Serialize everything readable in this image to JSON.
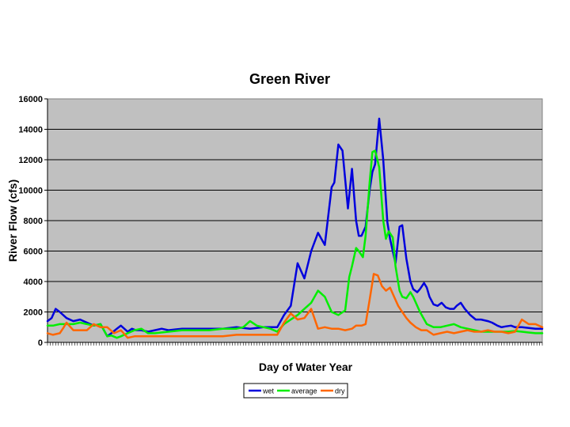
{
  "chart_data": {
    "type": "line",
    "title": "Green River",
    "xlabel": "Day of Water Year",
    "ylabel": "River Flow (cfs)",
    "xlim": [
      1,
      365
    ],
    "ylim": [
      0,
      16000
    ],
    "yticks": [
      0,
      2000,
      4000,
      6000,
      8000,
      10000,
      12000,
      14000,
      16000
    ],
    "grid": "horizontal",
    "legend": "bottom-center",
    "plot_background": "#c0c0c0",
    "series": [
      {
        "name": "wet",
        "color": "#0000dd",
        "x": [
          1,
          4,
          7,
          10,
          15,
          20,
          25,
          30,
          35,
          40,
          45,
          48,
          52,
          55,
          60,
          63,
          66,
          70,
          75,
          80,
          85,
          90,
          95,
          100,
          110,
          120,
          130,
          140,
          150,
          160,
          170,
          175,
          180,
          185,
          190,
          195,
          200,
          205,
          210,
          212,
          215,
          218,
          222,
          225,
          228,
          230,
          232,
          235,
          238,
          240,
          242,
          245,
          248,
          251,
          253,
          255,
          257,
          260,
          262,
          265,
          268,
          270,
          273,
          275,
          278,
          280,
          282,
          285,
          288,
          291,
          294,
          297,
          300,
          302,
          305,
          308,
          312,
          316,
          320,
          325,
          328,
          330,
          332,
          335,
          338,
          342,
          345,
          350,
          355,
          360,
          365
        ],
        "y": [
          1400,
          1600,
          2200,
          2000,
          1600,
          1400,
          1500,
          1300,
          1100,
          1200,
          400,
          600,
          900,
          1100,
          700,
          900,
          800,
          800,
          700,
          800,
          900,
          800,
          850,
          900,
          900,
          900,
          900,
          1000,
          900,
          1000,
          1000,
          1800,
          2400,
          5200,
          4200,
          6000,
          7200,
          6400,
          10200,
          10500,
          13000,
          12600,
          8800,
          11400,
          8000,
          7000,
          7000,
          7600,
          10000,
          11200,
          11700,
          14700,
          12000,
          7900,
          6800,
          6000,
          5200,
          7600,
          7700,
          5500,
          4000,
          3500,
          3300,
          3500,
          3900,
          3600,
          3000,
          2500,
          2400,
          2600,
          2300,
          2200,
          2200,
          2400,
          2600,
          2200,
          1800,
          1500,
          1500,
          1400,
          1300,
          1200,
          1100,
          1000,
          1050,
          1100,
          1000,
          1000,
          950,
          900,
          900
        ]
      },
      {
        "name": "average",
        "color": "#00ee00",
        "x": [
          1,
          5,
          10,
          15,
          20,
          25,
          30,
          35,
          40,
          45,
          48,
          52,
          55,
          60,
          65,
          70,
          75,
          80,
          90,
          100,
          110,
          120,
          130,
          140,
          145,
          150,
          155,
          160,
          165,
          170,
          175,
          180,
          185,
          190,
          195,
          200,
          205,
          210,
          215,
          220,
          223,
          225,
          228,
          230,
          233,
          235,
          238,
          240,
          242,
          245,
          248,
          250,
          252,
          255,
          257,
          260,
          262,
          265,
          268,
          270,
          275,
          280,
          285,
          290,
          295,
          300,
          305,
          310,
          315,
          320,
          325,
          330,
          335,
          340,
          345,
          350,
          355,
          360,
          365
        ],
        "y": [
          1100,
          1100,
          1200,
          1200,
          1200,
          1300,
          1200,
          1100,
          1200,
          400,
          450,
          300,
          400,
          600,
          800,
          900,
          600,
          600,
          700,
          800,
          800,
          800,
          900,
          900,
          1000,
          1400,
          1100,
          1000,
          900,
          700,
          1200,
          1500,
          1800,
          2200,
          2600,
          3400,
          3000,
          2000,
          1800,
          2100,
          4300,
          5000,
          6200,
          6000,
          5600,
          7000,
          10500,
          12500,
          12600,
          11500,
          8000,
          6800,
          7300,
          6900,
          5000,
          3400,
          3000,
          2900,
          3300,
          3000,
          2000,
          1200,
          1000,
          1000,
          1100,
          1200,
          1000,
          900,
          800,
          700,
          700,
          700,
          700,
          700,
          750,
          700,
          650,
          600,
          600
        ]
      },
      {
        "name": "dry",
        "color": "#ff6600",
        "x": [
          1,
          5,
          10,
          13,
          15,
          20,
          25,
          30,
          35,
          40,
          45,
          50,
          55,
          60,
          65,
          70,
          80,
          90,
          100,
          110,
          120,
          130,
          140,
          150,
          160,
          170,
          175,
          180,
          185,
          190,
          195,
          200,
          205,
          210,
          215,
          220,
          225,
          228,
          232,
          235,
          238,
          241,
          244,
          247,
          250,
          253,
          256,
          259,
          262,
          265,
          268,
          272,
          276,
          280,
          285,
          290,
          295,
          300,
          305,
          310,
          315,
          320,
          325,
          330,
          335,
          340,
          345,
          350,
          355,
          360,
          365
        ],
        "y": [
          600,
          500,
          600,
          1000,
          1300,
          800,
          800,
          800,
          1200,
          1000,
          1000,
          600,
          800,
          300,
          400,
          400,
          400,
          400,
          400,
          400,
          400,
          400,
          500,
          500,
          500,
          500,
          1300,
          1900,
          1500,
          1600,
          2200,
          900,
          1000,
          900,
          900,
          800,
          900,
          1100,
          1100,
          1200,
          2800,
          4500,
          4400,
          3700,
          3400,
          3600,
          3000,
          2400,
          2000,
          1600,
          1300,
          1000,
          800,
          800,
          500,
          600,
          700,
          600,
          700,
          800,
          700,
          700,
          800,
          700,
          700,
          600,
          700,
          1500,
          1200,
          1200,
          1000
        ]
      }
    ]
  }
}
